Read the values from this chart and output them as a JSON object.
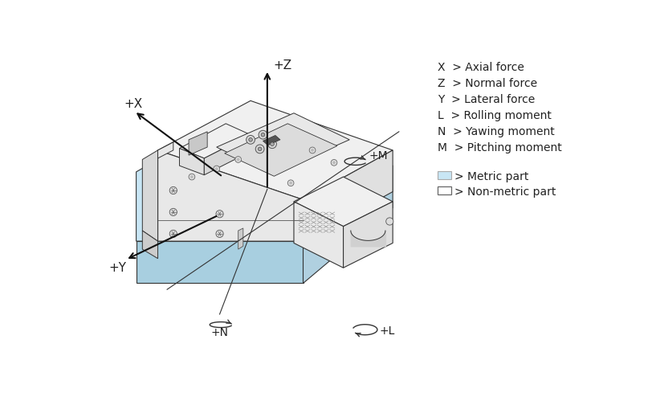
{
  "bg_color": "#ffffff",
  "legend_lines": [
    [
      "X",
      "> Axial force"
    ],
    [
      "Z",
      "> Normal force"
    ],
    [
      "Y",
      "> Lateral force"
    ],
    [
      "L",
      "> Rolling moment"
    ],
    [
      "N",
      "> Yawing moment"
    ],
    [
      "M",
      "> Pitching moment"
    ]
  ],
  "metric_color": "#c8e6f5",
  "metric_label": "> Metric part",
  "nonmetric_label": "> Non-metric part",
  "arrow_color": "#111111",
  "body_edge": "#333333",
  "blue_fill": "#c8e6f5",
  "blue_side": "#a8cfe0",
  "grey_top": "#f0f0f0",
  "grey_left": "#e8e8e8",
  "grey_right": "#e0e0e0",
  "white_face": "#f8f8f8",
  "dark_line": "#222222"
}
